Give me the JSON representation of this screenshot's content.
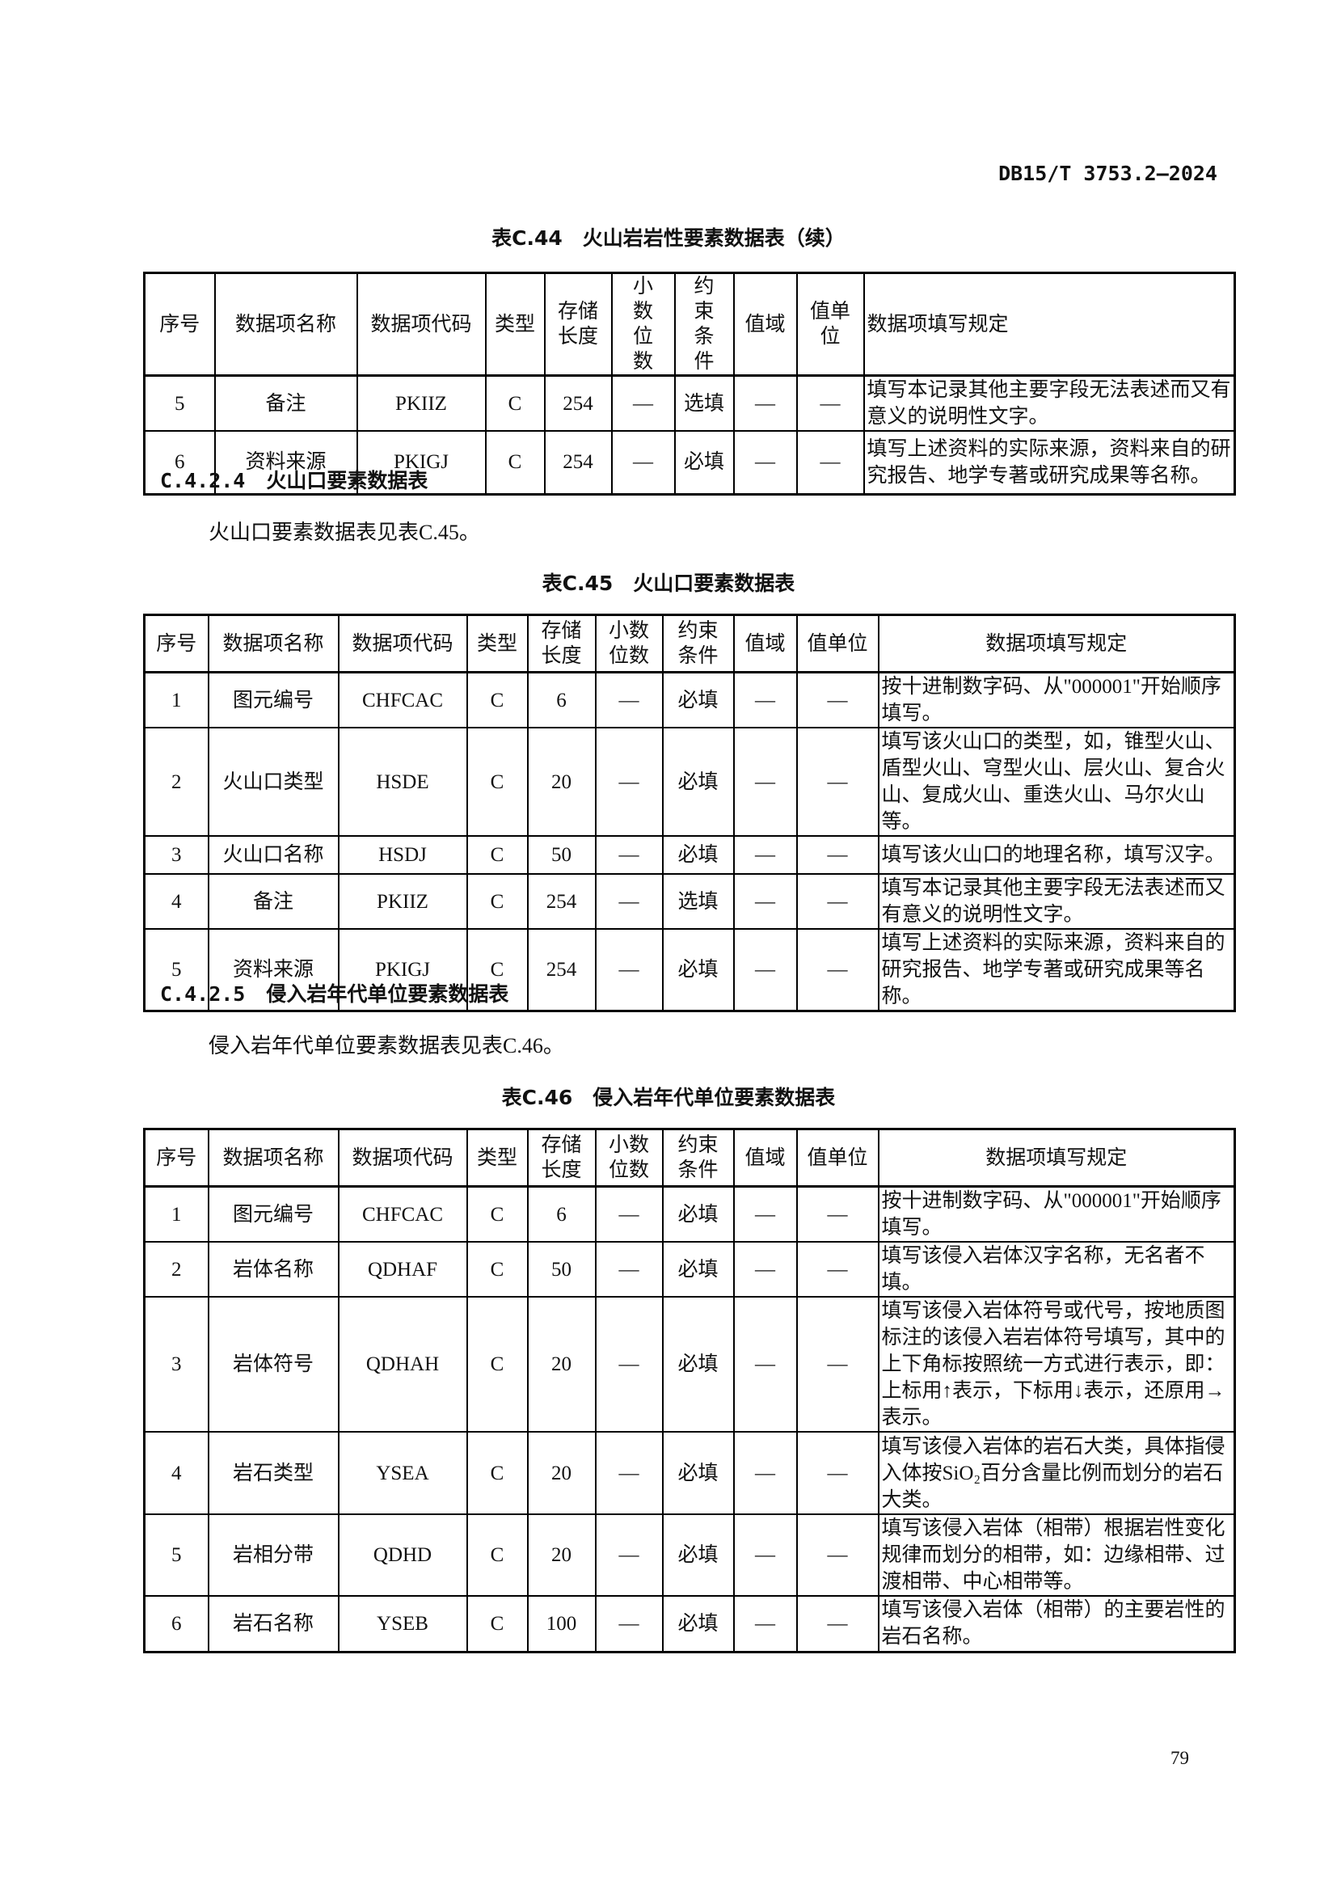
{
  "doc_id": "DB15/T 3753.2—2024",
  "page_number": "79",
  "headers": [
    "序号",
    "数据项名称",
    "数据项代码",
    "类型",
    "存储长度",
    "小数位数",
    "约束条件",
    "值域",
    "值单位",
    "数据项填写规定"
  ],
  "table44": {
    "title": "表C.44　火山岩岩性要素数据表（续）",
    "headers": [
      "序号",
      "数据项名称",
      "数据项代码",
      "类型",
      "存储长度",
      "小数位数",
      "约束条件",
      "值域",
      "值单位",
      "数据项填写规定"
    ],
    "rows": [
      [
        "5",
        "备注",
        "PKIIZ",
        "C",
        "254",
        "—",
        "选填",
        "—",
        "—",
        "填写本记录其他主要字段无法表述而又有意义的说明性文字。"
      ],
      [
        "6",
        "资料来源",
        "PKIGJ",
        "C",
        "254",
        "—",
        "必填",
        "—",
        "—",
        "填写上述资料的实际来源，资料来自的研究报告、地学专著或研究成果等名称。"
      ]
    ]
  },
  "section_c424": {
    "number": "C.4.2.4",
    "title": "火山口要素数据表",
    "text": "火山口要素数据表见表C.45。"
  },
  "table45": {
    "title": "表C.45　火山口要素数据表",
    "headers": [
      "序号",
      "数据项名称",
      "数据项代码",
      "类型",
      "存储长度",
      "小数位数",
      "约束条件",
      "值域",
      "值单位",
      "数据项填写规定"
    ],
    "rows": [
      [
        "1",
        "图元编号",
        "CHFCAC",
        "C",
        "6",
        "—",
        "必填",
        "—",
        "—",
        "按十进制数字码、从\"000001\"开始顺序填写。"
      ],
      [
        "2",
        "火山口类型",
        "HSDE",
        "C",
        "20",
        "—",
        "必填",
        "—",
        "—",
        "填写该火山口的类型，如，锥型火山、盾型火山、穹型火山、层火山、复合火山、复成火山、重迭火山、马尔火山等。"
      ],
      [
        "3",
        "火山口名称",
        "HSDJ",
        "C",
        "50",
        "—",
        "必填",
        "—",
        "—",
        "填写该火山口的地理名称，填写汉字。"
      ],
      [
        "4",
        "备注",
        "PKIIZ",
        "C",
        "254",
        "—",
        "选填",
        "—",
        "—",
        "填写本记录其他主要字段无法表述而又有意义的说明性文字。"
      ],
      [
        "5",
        "资料来源",
        "PKIGJ",
        "C",
        "254",
        "—",
        "必填",
        "—",
        "—",
        "填写上述资料的实际来源，资料来自的研究报告、地学专著或研究成果等名称。"
      ]
    ]
  },
  "section_c425": {
    "number": "C.4.2.5",
    "title": "侵入岩年代单位要素数据表",
    "text": "侵入岩年代单位要素数据表见表C.46。"
  },
  "table46": {
    "title": "表C.46　侵入岩年代单位要素数据表",
    "headers": [
      "序号",
      "数据项名称",
      "数据项代码",
      "类型",
      "存储长度",
      "小数位数",
      "约束条件",
      "值域",
      "值单位",
      "数据项填写规定"
    ],
    "rows": [
      [
        "1",
        "图元编号",
        "CHFCAC",
        "C",
        "6",
        "—",
        "必填",
        "—",
        "—",
        "按十进制数字码、从\"000001\"开始顺序填写。"
      ],
      [
        "2",
        "岩体名称",
        "QDHAF",
        "C",
        "50",
        "—",
        "必填",
        "—",
        "—",
        "填写该侵入岩体汉字名称，无名者不填。"
      ],
      [
        "3",
        "岩体符号",
        "QDHAH",
        "C",
        "20",
        "—",
        "必填",
        "—",
        "—",
        "填写该侵入岩体符号或代号，按地质图标注的该侵入岩岩体符号填写，其中的上下角标按照统一方式进行表示，即：上标用↑表示，下标用↓表示，还原用→表示。"
      ],
      [
        "4",
        "岩石类型",
        "YSEA",
        "C",
        "20",
        "—",
        "必填",
        "—",
        "—",
        "填写该侵入岩体的岩石大类，具体指侵入体按SiO₂百分含量比例而划分的岩石大类。"
      ],
      [
        "5",
        "岩相分带",
        "QDHD",
        "C",
        "20",
        "—",
        "必填",
        "—",
        "—",
        "填写该侵入岩体（相带）根据岩性变化规律而划分的相带，如：边缘相带、过渡相带、中心相带等。"
      ],
      [
        "6",
        "岩石名称",
        "YSEB",
        "C",
        "100",
        "—",
        "必填",
        "—",
        "—",
        "填写该侵入岩体（相带）的主要岩性的岩石名称。"
      ]
    ]
  }
}
